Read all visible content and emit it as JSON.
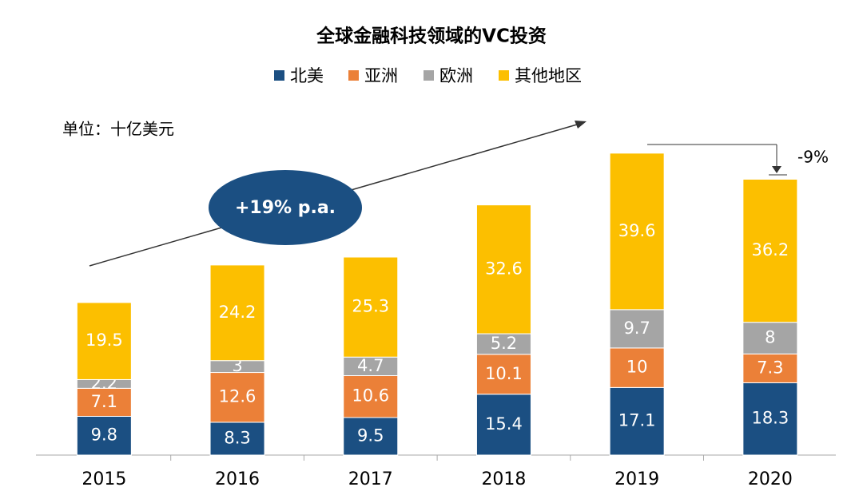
{
  "chart_data": {
    "type": "stacked_bar",
    "title": "全球金融科技领域的VC投资",
    "categories": [
      "2015",
      "2016",
      "2017",
      "2018",
      "2019",
      "2020"
    ],
    "series": [
      {
        "name": "北美",
        "color": "#1b4f82",
        "values": [
          9.8,
          8.3,
          9.5,
          15.4,
          17.1,
          18.3
        ]
      },
      {
        "name": "亚洲",
        "color": "#eb8038",
        "values": [
          7.1,
          12.6,
          10.6,
          10.1,
          10,
          7.3
        ]
      },
      {
        "name": "欧洲",
        "color": "#a5a5a5",
        "values": [
          2.2,
          3,
          4.7,
          5.2,
          9.7,
          8
        ]
      },
      {
        "name": "其他地区",
        "color": "#fcbf00",
        "values": [
          19.5,
          24.2,
          25.3,
          32.6,
          39.6,
          36.2
        ]
      }
    ],
    "annotations": {
      "unit": "单位：十亿美元",
      "growth": "+19% p.a.",
      "change": "-9%"
    }
  }
}
